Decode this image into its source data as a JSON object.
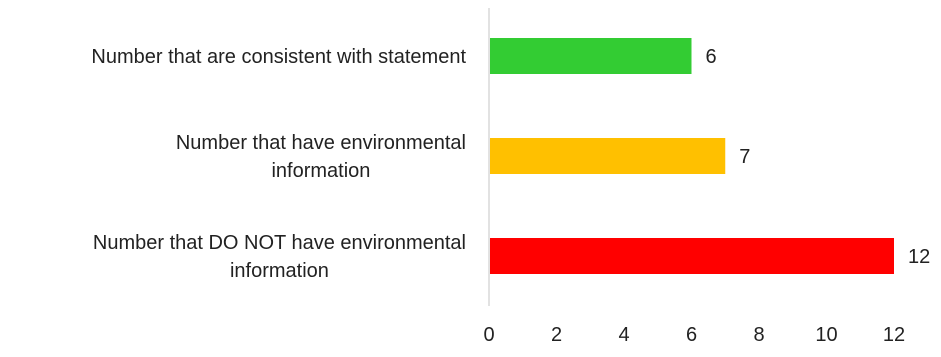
{
  "chart_data": {
    "type": "bar",
    "orientation": "horizontal",
    "categories": [
      "Number that are consistent with statement",
      "Number that have environmental information",
      "Number that DO NOT have environmental information"
    ],
    "category_label_lines": [
      [
        "Number that are consistent with statement"
      ],
      [
        "Number that have environmental",
        "information"
      ],
      [
        "Number that DO NOT have environmental",
        "information"
      ]
    ],
    "values": [
      6,
      7,
      12
    ],
    "value_labels": [
      "6",
      "7",
      "12"
    ],
    "bar_colors": [
      "#33cc33",
      "#ffc000",
      "#ff0000"
    ],
    "xlim": [
      0,
      12
    ],
    "x_ticks": [
      0,
      2,
      4,
      6,
      8,
      10,
      12
    ],
    "x_tick_labels": [
      "0",
      "2",
      "4",
      "6",
      "8",
      "10",
      "12"
    ],
    "title": "",
    "xlabel": "",
    "ylabel": "",
    "grid": false,
    "legend": "none",
    "axis_line_color": "#d9d9d9"
  }
}
